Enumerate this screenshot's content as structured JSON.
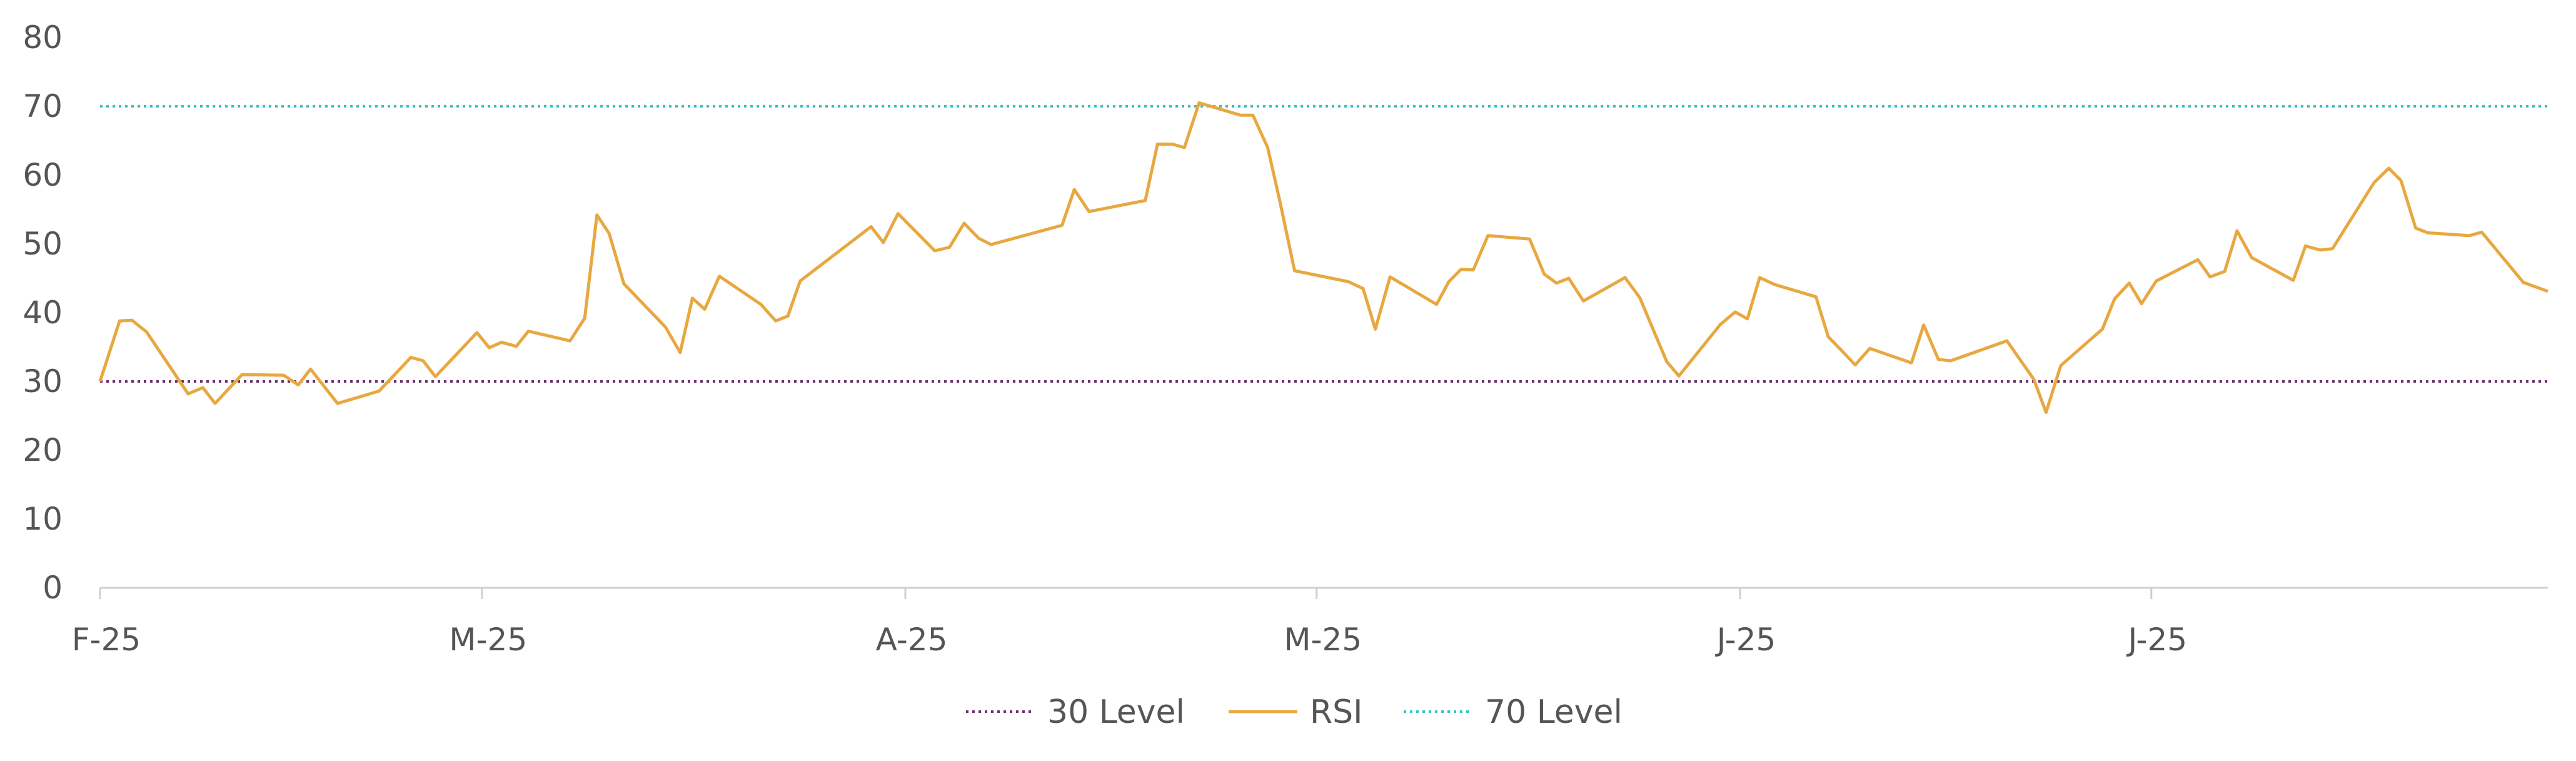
{
  "chart_data": {
    "type": "line",
    "title": "",
    "xlabel": "",
    "ylabel": "",
    "ylim": [
      0,
      80
    ],
    "y_ticks": [
      "0",
      "10",
      "20",
      "30",
      "40",
      "50",
      "60",
      "70",
      "80"
    ],
    "x_ticks": [
      "F-25",
      "M-25",
      "A-25",
      "M-25",
      "J-25",
      "J-25"
    ],
    "grid": false,
    "legend_position": "bottom",
    "legend": [
      "30 Level",
      "RSI",
      "70 Level"
    ],
    "series": [
      {
        "name": "30 Level",
        "style": "dotted",
        "color": "#6b2f6b",
        "values": [
          30,
          30
        ]
      },
      {
        "name": "RSI",
        "style": "solid",
        "color": "#e8a840",
        "values": [
          30.0,
          38.8,
          38.9,
          37.2,
          28.2,
          29.1,
          26.8,
          31.0,
          30.9,
          29.5,
          31.8,
          26.8,
          28.6,
          33.5,
          33.0,
          30.7,
          37.1,
          34.9,
          35.7,
          35.1,
          37.3,
          35.9,
          39.2,
          54.2,
          51.5,
          44.2,
          37.9,
          34.2,
          42.1,
          40.5,
          45.3,
          41.2,
          38.8,
          39.5,
          44.6,
          52.5,
          50.2,
          54.4,
          49.0,
          49.5,
          53.0,
          50.8,
          49.9,
          52.7,
          57.9,
          54.7,
          56.3,
          64.5,
          64.5,
          64.0,
          70.5,
          68.7,
          68.7,
          64.0,
          56.2,
          46.1,
          44.5,
          43.5,
          37.6,
          45.2,
          41.2,
          44.5,
          46.3,
          46.2,
          51.2,
          50.7,
          45.6,
          44.3,
          45.0,
          41.7,
          45.1,
          42.2,
          32.9,
          30.8,
          38.3,
          40.1,
          39.1,
          45.1,
          44.1,
          42.3,
          36.5,
          34.3,
          32.4,
          34.8,
          32.7,
          38.2,
          33.2,
          33.0,
          35.9,
          30.3,
          25.5,
          32.3,
          37.6,
          42.0,
          44.3,
          41.3,
          44.6,
          47.7,
          45.2,
          46.0,
          51.9,
          48.0,
          44.7,
          49.7,
          49.1,
          49.3,
          58.9,
          61.0,
          59.2,
          52.3,
          51.6,
          51.2,
          51.7,
          44.4,
          43.1
        ],
        "x_positions": [
          0.0,
          0.008,
          0.013,
          0.019,
          0.036,
          0.042,
          0.047,
          0.058,
          0.075,
          0.081,
          0.086,
          0.097,
          0.114,
          0.127,
          0.132,
          0.137,
          0.154,
          0.159,
          0.164,
          0.17,
          0.175,
          0.192,
          0.198,
          0.203,
          0.208,
          0.214,
          0.231,
          0.237,
          0.242,
          0.247,
          0.253,
          0.27,
          0.276,
          0.281,
          0.286,
          0.315,
          0.32,
          0.326,
          0.341,
          0.347,
          0.353,
          0.359,
          0.364,
          0.393,
          0.398,
          0.404,
          0.427,
          0.432,
          0.438,
          0.443,
          0.449,
          0.466,
          0.471,
          0.477,
          0.482,
          0.488,
          0.51,
          0.516,
          0.521,
          0.527,
          0.546,
          0.551,
          0.556,
          0.561,
          0.567,
          0.584,
          0.59,
          0.595,
          0.6,
          0.606,
          0.623,
          0.629,
          0.64,
          0.645,
          0.662,
          0.668,
          0.673,
          0.678,
          0.684,
          0.701,
          0.706,
          0.712,
          0.717,
          0.723,
          0.74,
          0.745,
          0.751,
          0.756,
          0.779,
          0.79,
          0.795,
          0.801,
          0.818,
          0.823,
          0.829,
          0.834,
          0.84,
          0.857,
          0.862,
          0.868,
          0.873,
          0.879,
          0.896,
          0.901,
          0.907,
          0.912,
          0.929,
          0.935,
          0.94,
          0.946,
          0.951,
          0.968,
          0.973,
          0.99,
          1.0
        ]
      },
      {
        "name": "70 Level",
        "style": "dotted",
        "color": "#2ec4c4",
        "values": [
          70,
          70
        ]
      }
    ]
  }
}
